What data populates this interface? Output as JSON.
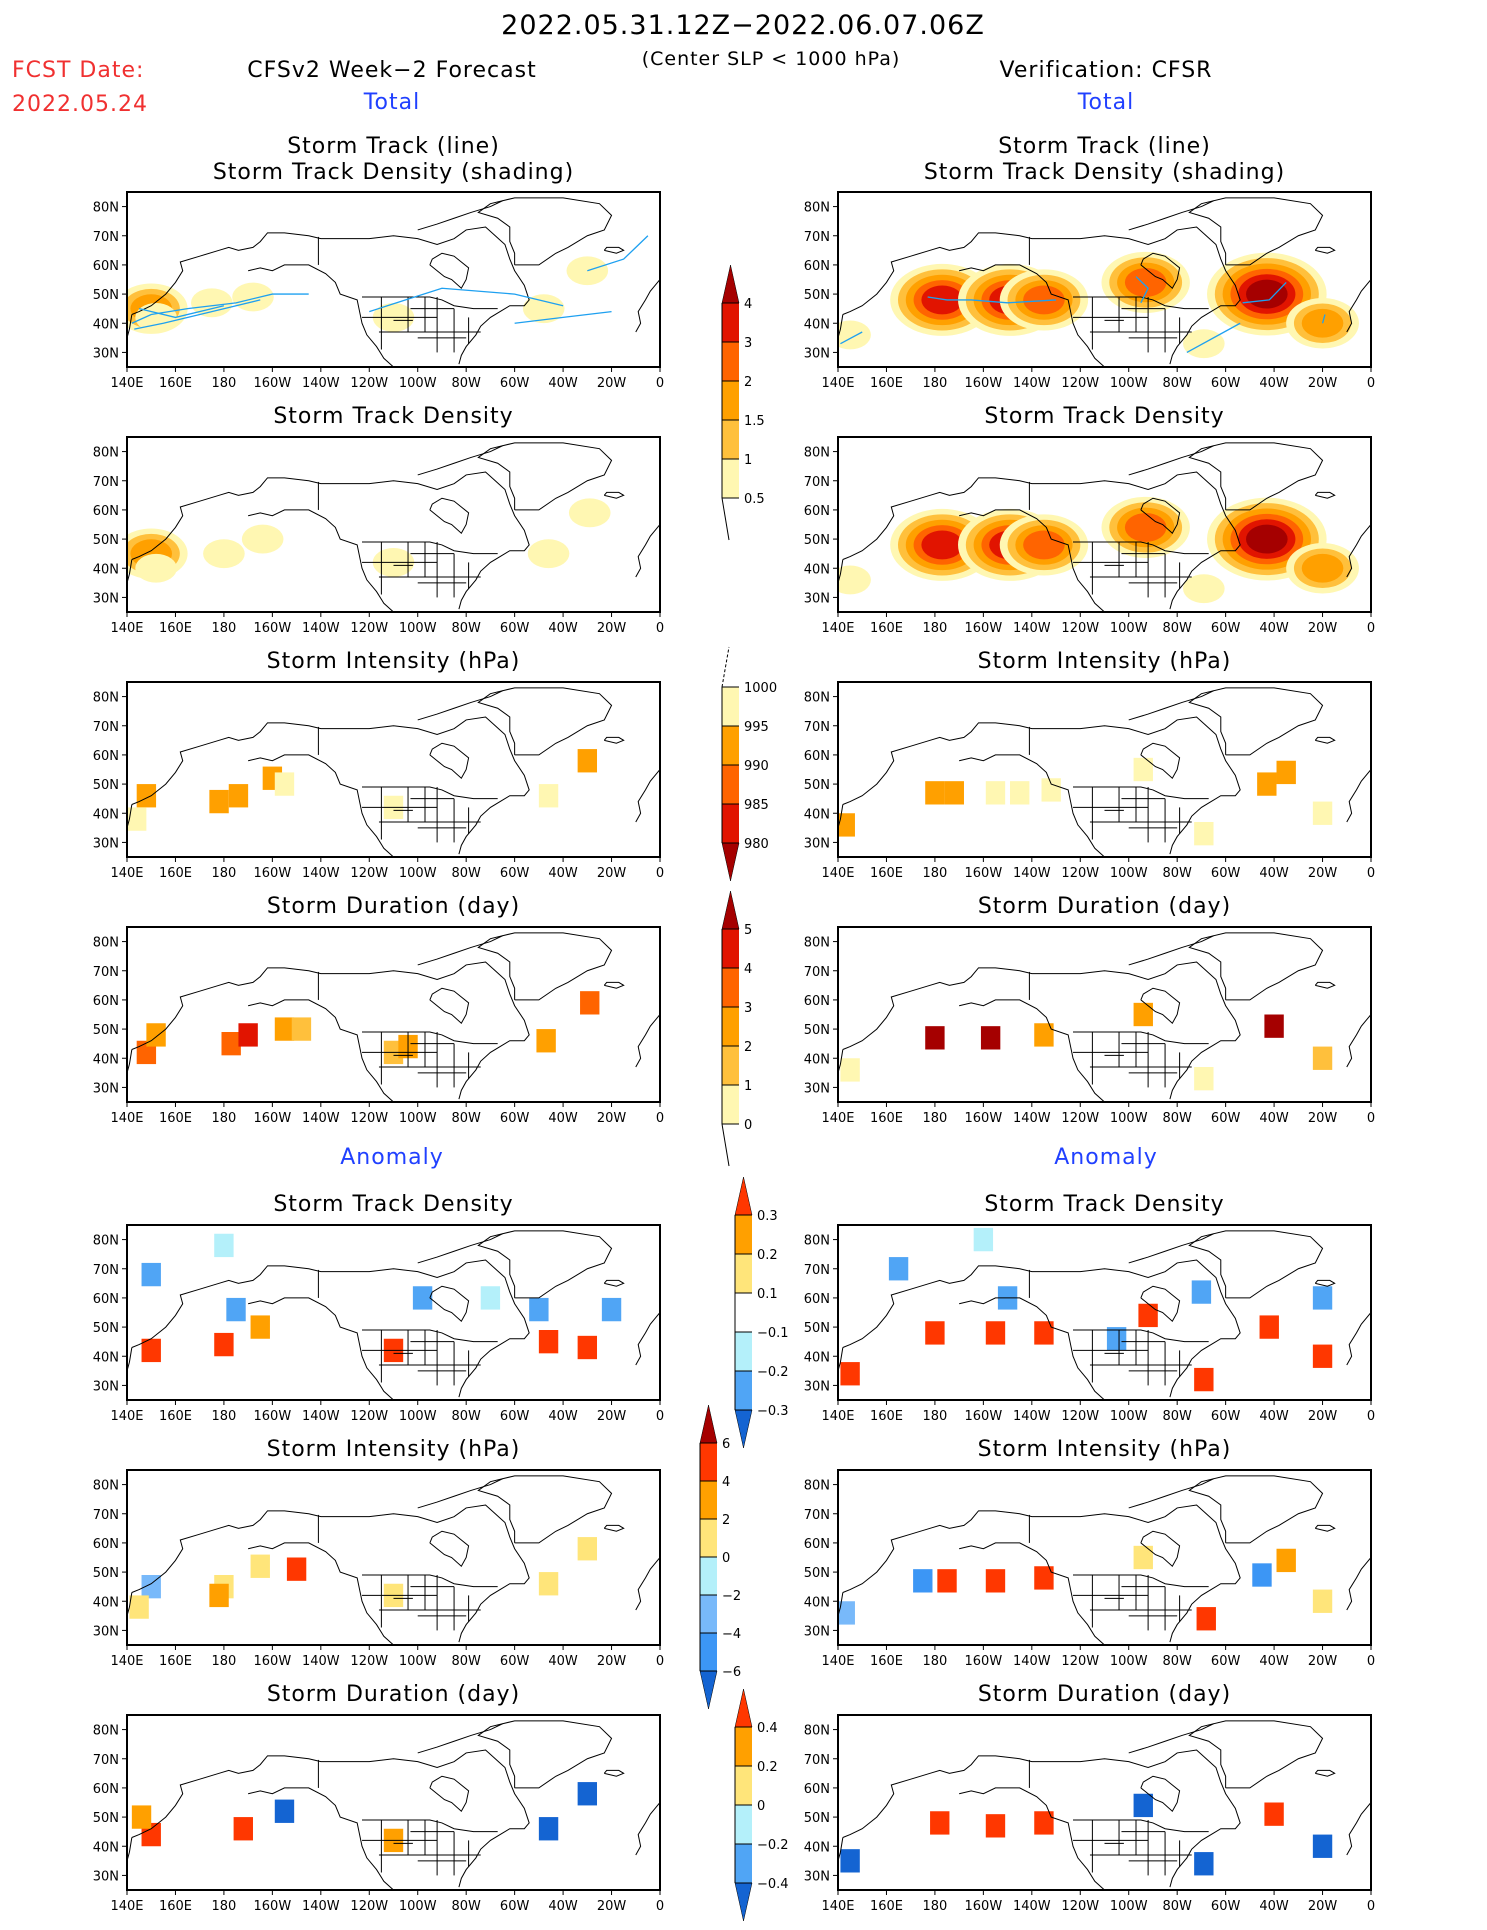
{
  "header": {
    "period": "2022.05.31.12Z−2022.06.07.06Z",
    "criterion": "(Center SLP < 1000 hPa)",
    "fcst_label": "FCST Date:",
    "fcst_date": "2022.05.24",
    "left_title": "CFSv2 Week−2 Forecast",
    "right_title": "Verification: CFSR",
    "total_label": "Total",
    "anomaly_label": "Anomaly"
  },
  "axes": {
    "lon_ticks": [
      "140E",
      "160E",
      "180",
      "160W",
      "140W",
      "120W",
      "100W",
      "80W",
      "60W",
      "40W",
      "20W",
      "0"
    ],
    "lat_ticks": [
      "80N",
      "70N",
      "60N",
      "50N",
      "40N",
      "30N"
    ],
    "lon_range": [
      140,
      360
    ],
    "lat_range": [
      25,
      85
    ]
  },
  "chart_data": [
    {
      "type": "heatmap",
      "panel": "forecast-total-track",
      "title_line1": "Storm Track (line)",
      "title_line2": "Storm Track Density (shading)",
      "colorbar": "density",
      "blobs": [
        [
          150,
          45,
          1.5
        ],
        [
          152,
          42,
          0.6
        ],
        [
          175,
          47,
          0.6
        ],
        [
          192,
          49,
          0.6
        ],
        [
          250,
          42,
          0.6
        ],
        [
          312,
          45,
          0.6
        ],
        [
          330,
          58,
          0.6
        ]
      ],
      "tracks": [
        [
          [
            142,
            40
          ],
          [
            150,
            43
          ],
          [
            165,
            45
          ],
          [
            185,
            47
          ],
          [
            200,
            50
          ],
          [
            215,
            50
          ]
        ],
        [
          [
            143,
            38
          ],
          [
            155,
            40
          ],
          [
            175,
            44
          ],
          [
            195,
            48
          ]
        ],
        [
          [
            145,
            45
          ],
          [
            160,
            42
          ],
          [
            180,
            46
          ]
        ],
        [
          [
            240,
            44
          ],
          [
            255,
            48
          ],
          [
            270,
            52
          ],
          [
            300,
            50
          ],
          [
            320,
            46
          ]
        ],
        [
          [
            300,
            40
          ],
          [
            320,
            42
          ],
          [
            340,
            44
          ]
        ],
        [
          [
            330,
            58
          ],
          [
            345,
            62
          ],
          [
            355,
            70
          ]
        ]
      ]
    },
    {
      "type": "heatmap",
      "panel": "verification-total-track",
      "title_line1": "Storm Track (line)",
      "title_line2": "Storm Track Density (shading)",
      "colorbar": "density",
      "blobs": [
        [
          183,
          48,
          3.5
        ],
        [
          211,
          48,
          3
        ],
        [
          225,
          48,
          2
        ],
        [
          267,
          54,
          2.5
        ],
        [
          317,
          50,
          4
        ],
        [
          340,
          40,
          1.5
        ],
        [
          145,
          36,
          0.6
        ],
        [
          291,
          33,
          0.6
        ]
      ],
      "tracks": [
        [
          [
            177,
            49
          ],
          [
            185,
            48
          ],
          [
            195,
            48
          ],
          [
            210,
            47
          ],
          [
            230,
            48
          ]
        ],
        [
          [
            263,
            56
          ],
          [
            268,
            52
          ],
          [
            265,
            47
          ]
        ],
        [
          [
            307,
            47
          ],
          [
            318,
            48
          ],
          [
            325,
            54
          ]
        ],
        [
          [
            284,
            30
          ],
          [
            306,
            40
          ]
        ],
        [
          [
            141,
            33
          ],
          [
            150,
            37
          ]
        ],
        [
          [
            340,
            40
          ],
          [
            341,
            43
          ]
        ]
      ]
    },
    {
      "type": "heatmap",
      "panel": "forecast-total-density",
      "title": "Storm Track Density",
      "colorbar": "density",
      "blobs": [
        [
          150,
          45,
          1.5
        ],
        [
          152,
          40,
          0.6
        ],
        [
          180,
          45,
          0.6
        ],
        [
          196,
          50,
          0.6
        ],
        [
          250,
          42,
          0.6
        ],
        [
          314,
          45,
          0.6
        ],
        [
          331,
          59,
          0.6
        ]
      ]
    },
    {
      "type": "heatmap",
      "panel": "verification-total-density",
      "title": "Storm Track Density",
      "colorbar": "density",
      "blobs": [
        [
          183,
          48,
          3.5
        ],
        [
          211,
          48,
          3
        ],
        [
          225,
          48,
          2
        ],
        [
          267,
          54,
          2.5
        ],
        [
          317,
          50,
          4
        ],
        [
          340,
          40,
          1.5
        ],
        [
          145,
          36,
          0.6
        ],
        [
          291,
          33,
          0.6
        ]
      ]
    },
    {
      "type": "heatmap",
      "panel": "forecast-total-intensity",
      "title": "Storm Intensity (hPa)",
      "colorbar": "intensity",
      "cells": [
        [
          148,
          46,
          992
        ],
        [
          144,
          38,
          997
        ],
        [
          178,
          44,
          993
        ],
        [
          186,
          46,
          992
        ],
        [
          200,
          52,
          992
        ],
        [
          205,
          50,
          997
        ],
        [
          250,
          42,
          997
        ],
        [
          314,
          46,
          997
        ],
        [
          330,
          58,
          992
        ]
      ]
    },
    {
      "type": "heatmap",
      "panel": "verification-total-intensity",
      "title": "Storm Intensity (hPa)",
      "colorbar": "intensity",
      "cells": [
        [
          180,
          47,
          992
        ],
        [
          188,
          47,
          992
        ],
        [
          205,
          47,
          997
        ],
        [
          215,
          47,
          997
        ],
        [
          228,
          48,
          997
        ],
        [
          266,
          55,
          997
        ],
        [
          317,
          50,
          992
        ],
        [
          325,
          54,
          992
        ],
        [
          143,
          36,
          992
        ],
        [
          340,
          40,
          997
        ],
        [
          291,
          33,
          997
        ]
      ]
    },
    {
      "type": "heatmap",
      "panel": "forecast-total-duration",
      "title": "Storm Duration (day)",
      "colorbar": "duration",
      "cells": [
        [
          148,
          42,
          3.5
        ],
        [
          152,
          48,
          2.5
        ],
        [
          183,
          45,
          3.5
        ],
        [
          190,
          48,
          4.5
        ],
        [
          205,
          50,
          2.5
        ],
        [
          212,
          50,
          1.5
        ],
        [
          250,
          42,
          1.5
        ],
        [
          256,
          44,
          2.5
        ],
        [
          313,
          46,
          2.5
        ],
        [
          331,
          59,
          3.5
        ]
      ]
    },
    {
      "type": "heatmap",
      "panel": "verification-total-duration",
      "title": "Storm Duration (day)",
      "colorbar": "duration",
      "cells": [
        [
          180,
          47,
          5.5
        ],
        [
          203,
          47,
          5.5
        ],
        [
          225,
          48,
          2.5
        ],
        [
          266,
          55,
          2.5
        ],
        [
          320,
          51,
          5.5
        ],
        [
          340,
          40,
          1.5
        ],
        [
          145,
          36,
          0.5
        ],
        [
          291,
          33,
          0.5
        ]
      ]
    },
    {
      "type": "heatmap",
      "panel": "forecast-anomaly-density",
      "title": "Storm Track Density",
      "colorbar": "anom_density",
      "cells": [
        [
          150,
          42,
          0.35
        ],
        [
          180,
          44,
          0.35
        ],
        [
          195,
          50,
          0.25
        ],
        [
          250,
          42,
          0.35
        ],
        [
          314,
          45,
          0.35
        ],
        [
          330,
          43,
          0.35
        ],
        [
          150,
          68,
          -0.25
        ],
        [
          185,
          56,
          -0.25
        ],
        [
          262,
          60,
          -0.2
        ],
        [
          310,
          56,
          -0.25
        ],
        [
          340,
          56,
          -0.25
        ],
        [
          180,
          78,
          -0.15
        ],
        [
          290,
          60,
          -0.15
        ]
      ]
    },
    {
      "type": "heatmap",
      "panel": "verification-anomaly-density",
      "title": "Storm Track Density",
      "colorbar": "anom_density",
      "cells": [
        [
          180,
          48,
          0.35
        ],
        [
          205,
          48,
          0.35
        ],
        [
          225,
          48,
          0.35
        ],
        [
          268,
          54,
          0.35
        ],
        [
          318,
          50,
          0.35
        ],
        [
          340,
          40,
          0.35
        ],
        [
          145,
          34,
          0.35
        ],
        [
          291,
          32,
          0.35
        ],
        [
          165,
          70,
          -0.25
        ],
        [
          210,
          60,
          -0.25
        ],
        [
          290,
          62,
          -0.25
        ],
        [
          340,
          60,
          -0.25
        ],
        [
          255,
          46,
          -0.25
        ],
        [
          200,
          80,
          -0.15
        ]
      ]
    },
    {
      "type": "heatmap",
      "panel": "forecast-anomaly-intensity",
      "title": "Storm Intensity (hPa)",
      "colorbar": "anom_intensity",
      "cells": [
        [
          150,
          45,
          -3
        ],
        [
          145,
          38,
          1
        ],
        [
          180,
          45,
          1
        ],
        [
          178,
          42,
          3
        ],
        [
          195,
          52,
          1
        ],
        [
          210,
          51,
          5
        ],
        [
          250,
          42,
          1
        ],
        [
          314,
          46,
          1
        ],
        [
          330,
          58,
          1
        ]
      ]
    },
    {
      "type": "heatmap",
      "panel": "verification-anomaly-intensity",
      "title": "Storm Intensity (hPa)",
      "colorbar": "anom_intensity",
      "cells": [
        [
          175,
          47,
          -4
        ],
        [
          185,
          47,
          5
        ],
        [
          205,
          47,
          5
        ],
        [
          225,
          48,
          5
        ],
        [
          266,
          55,
          1
        ],
        [
          315,
          49,
          -5
        ],
        [
          325,
          54,
          3
        ],
        [
          143,
          36,
          -3
        ],
        [
          292,
          34,
          5
        ],
        [
          340,
          40,
          1
        ]
      ]
    },
    {
      "type": "heatmap",
      "panel": "forecast-anomaly-duration",
      "title": "Storm Duration (day)",
      "colorbar": "anom_duration",
      "cells": [
        [
          150,
          44,
          0.45
        ],
        [
          146,
          50,
          0.3
        ],
        [
          188,
          46,
          0.45
        ],
        [
          205,
          52,
          -0.45
        ],
        [
          250,
          42,
          0.3
        ],
        [
          314,
          46,
          -0.45
        ],
        [
          330,
          58,
          -0.45
        ]
      ]
    },
    {
      "type": "heatmap",
      "panel": "verification-anomaly-duration",
      "title": "Storm Duration (day)",
      "colorbar": "anom_duration",
      "cells": [
        [
          182,
          48,
          0.45
        ],
        [
          205,
          47,
          0.45
        ],
        [
          225,
          48,
          0.45
        ],
        [
          266,
          54,
          -0.45
        ],
        [
          320,
          51,
          0.45
        ],
        [
          145,
          35,
          -0.45
        ],
        [
          291,
          34,
          -0.45
        ],
        [
          340,
          40,
          -0.45
        ]
      ]
    }
  ],
  "colorbars": {
    "density": {
      "labels": [
        "0.5",
        "1",
        "1.5",
        "2",
        "3",
        "4"
      ],
      "colors": [
        "#fff7b2",
        "#ffc03c",
        "#ffa000",
        "#ff6400",
        "#e11400",
        "#a50000"
      ]
    },
    "intensity": {
      "labels": [
        "1000",
        "995",
        "990",
        "985",
        "980"
      ],
      "colors": [
        "#fff7b2",
        "#ffa000",
        "#ff6400",
        "#e11400",
        "#a50000"
      ]
    },
    "duration": {
      "labels": [
        "5",
        "4",
        "3",
        "2",
        "1",
        "0"
      ],
      "colors": [
        "#fff7b2",
        "#ffc03c",
        "#ffa000",
        "#ff6400",
        "#e11400",
        "#a50000"
      ]
    },
    "anom_density": {
      "labels": [
        "0.3",
        "0.2",
        "0.1",
        "−0.1",
        "−0.2",
        "−0.3"
      ],
      "colors": [
        "#ff3700",
        "#ffa000",
        "#ffe57a",
        "#ffffff",
        "#b4f0fa",
        "#50a5f5",
        "#1464d2"
      ]
    },
    "anom_intensity": {
      "labels": [
        "6",
        "4",
        "2",
        "0",
        "−2",
        "−4",
        "−6"
      ],
      "colors": [
        "#a50000",
        "#ff3700",
        "#ffa000",
        "#ffe57a",
        "#b4f0fa",
        "#78b9fa",
        "#3c96f5",
        "#1464d2"
      ]
    },
    "anom_duration": {
      "labels": [
        "0.4",
        "0.2",
        "0",
        "−0.2",
        "−0.4"
      ],
      "colors": [
        "#ff3700",
        "#ffa000",
        "#ffe57a",
        "#b4f0fa",
        "#50a5f5",
        "#1464d2"
      ]
    }
  },
  "colors": {
    "track_line": "#1ea0f0",
    "fcst_red": "#f03030",
    "label_blue": "#2040ff"
  }
}
